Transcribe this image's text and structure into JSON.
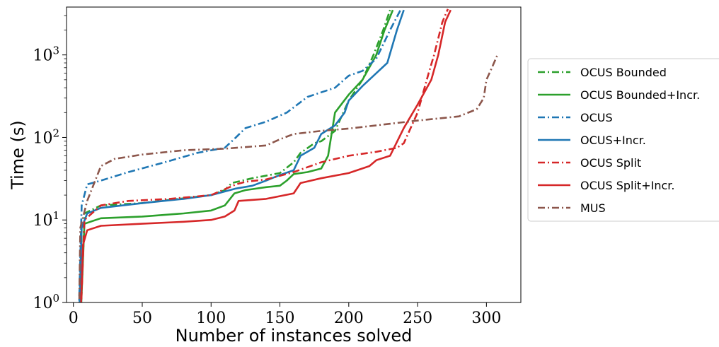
{
  "chart_data": {
    "type": "line",
    "title": "",
    "xlabel": "Number of instances solved",
    "ylabel": "Time (s)",
    "xlim": [
      -5,
      325
    ],
    "ylim": [
      1,
      3800
    ],
    "yscale": "log",
    "xticks": [
      0,
      50,
      100,
      150,
      200,
      250,
      300
    ],
    "xtick_labels": [
      "0",
      "50",
      "100",
      "150",
      "200",
      "250",
      "300"
    ],
    "yticks": [
      1,
      10,
      100,
      1000
    ],
    "ytick_labels": [
      {
        "base": "10",
        "exp": "0"
      },
      {
        "base": "10",
        "exp": "1"
      },
      {
        "base": "10",
        "exp": "2"
      },
      {
        "base": "10",
        "exp": "3"
      }
    ],
    "grid": false,
    "legend_position": "outside-right",
    "series": [
      {
        "name": "OCUS_Bounded",
        "label": "OCUS Bounded",
        "color": "#2ca02c",
        "dash": "dashdot",
        "points": [
          [
            5,
            0.5
          ],
          [
            8,
            12
          ],
          [
            20,
            15
          ],
          [
            50,
            16
          ],
          [
            100,
            20
          ],
          [
            110,
            23
          ],
          [
            115,
            28
          ],
          [
            130,
            32
          ],
          [
            150,
            37
          ],
          [
            160,
            50
          ],
          [
            165,
            65
          ],
          [
            175,
            85
          ],
          [
            180,
            90
          ],
          [
            190,
            120
          ],
          [
            200,
            280
          ],
          [
            210,
            500
          ],
          [
            218,
            1000
          ],
          [
            225,
            2000
          ],
          [
            230,
            3500
          ]
        ]
      },
      {
        "name": "OCUS_Bounded+Incr.",
        "label": "OCUS Bounded+Incr.",
        "color": "#2ca02c",
        "dash": "solid",
        "points": [
          [
            5,
            0.5
          ],
          [
            8,
            9
          ],
          [
            20,
            10.5
          ],
          [
            50,
            11
          ],
          [
            80,
            12
          ],
          [
            100,
            13
          ],
          [
            110,
            15
          ],
          [
            117,
            21
          ],
          [
            125,
            23
          ],
          [
            140,
            25
          ],
          [
            150,
            26
          ],
          [
            155,
            30
          ],
          [
            160,
            36
          ],
          [
            170,
            38
          ],
          [
            180,
            42
          ],
          [
            185,
            60
          ],
          [
            190,
            200
          ],
          [
            200,
            330
          ],
          [
            210,
            500
          ],
          [
            220,
            1000
          ],
          [
            226,
            2000
          ],
          [
            232,
            3500
          ]
        ]
      },
      {
        "name": "OCUS",
        "label": "OCUS",
        "color": "#1f77b4",
        "dash": "dashdot",
        "points": [
          [
            4,
            0.8
          ],
          [
            6,
            15
          ],
          [
            10,
            27
          ],
          [
            20,
            30
          ],
          [
            40,
            38
          ],
          [
            70,
            52
          ],
          [
            90,
            65
          ],
          [
            110,
            75
          ],
          [
            118,
            100
          ],
          [
            125,
            130
          ],
          [
            140,
            155
          ],
          [
            155,
            200
          ],
          [
            170,
            310
          ],
          [
            190,
            400
          ],
          [
            200,
            560
          ],
          [
            210,
            640
          ],
          [
            220,
            900
          ],
          [
            230,
            2000
          ],
          [
            238,
            3600
          ]
        ]
      },
      {
        "name": "OCUS+Incr.",
        "label": "OCUS+Incr.",
        "color": "#1f77b4",
        "dash": "solid",
        "points": [
          [
            4,
            0.5
          ],
          [
            6,
            8
          ],
          [
            10,
            12
          ],
          [
            20,
            14
          ],
          [
            50,
            16
          ],
          [
            80,
            18
          ],
          [
            100,
            20
          ],
          [
            118,
            24
          ],
          [
            130,
            26
          ],
          [
            140,
            30
          ],
          [
            150,
            35
          ],
          [
            160,
            40
          ],
          [
            165,
            60
          ],
          [
            175,
            75
          ],
          [
            180,
            110
          ],
          [
            190,
            140
          ],
          [
            197,
            200
          ],
          [
            200,
            280
          ],
          [
            210,
            420
          ],
          [
            220,
            600
          ],
          [
            228,
            800
          ],
          [
            235,
            2000
          ],
          [
            240,
            3500
          ]
        ]
      },
      {
        "name": "OCUS_Split",
        "label": "OCUS Split",
        "color": "#d62728",
        "dash": "dashdot",
        "points": [
          [
            5,
            0.5
          ],
          [
            8,
            10
          ],
          [
            20,
            15
          ],
          [
            40,
            17
          ],
          [
            70,
            18
          ],
          [
            100,
            20
          ],
          [
            118,
            27
          ],
          [
            125,
            29
          ],
          [
            140,
            31
          ],
          [
            160,
            38
          ],
          [
            180,
            50
          ],
          [
            200,
            60
          ],
          [
            220,
            67
          ],
          [
            235,
            75
          ],
          [
            240,
            85
          ],
          [
            250,
            200
          ],
          [
            258,
            600
          ],
          [
            262,
            1000
          ],
          [
            268,
            2500
          ],
          [
            272,
            3600
          ]
        ]
      },
      {
        "name": "OCUS_Split+Incr.",
        "label": "OCUS Split+Incr.",
        "color": "#d62728",
        "dash": "solid",
        "points": [
          [
            5,
            0.5
          ],
          [
            7,
            5
          ],
          [
            10,
            7.5
          ],
          [
            20,
            8.5
          ],
          [
            50,
            9
          ],
          [
            80,
            9.5
          ],
          [
            100,
            10
          ],
          [
            110,
            11
          ],
          [
            117,
            13
          ],
          [
            120,
            17
          ],
          [
            140,
            18
          ],
          [
            160,
            21
          ],
          [
            165,
            28
          ],
          [
            180,
            32
          ],
          [
            200,
            37
          ],
          [
            215,
            45
          ],
          [
            220,
            53
          ],
          [
            230,
            60
          ],
          [
            240,
            130
          ],
          [
            250,
            250
          ],
          [
            260,
            500
          ],
          [
            265,
            1000
          ],
          [
            270,
            2500
          ],
          [
            274,
            3500
          ]
        ]
      },
      {
        "name": "MUS",
        "label": "MUS",
        "color": "#8c564b",
        "dash": "dashdot",
        "points": [
          [
            4,
            0.5
          ],
          [
            5,
            8
          ],
          [
            10,
            17
          ],
          [
            20,
            45
          ],
          [
            30,
            55
          ],
          [
            50,
            62
          ],
          [
            80,
            70
          ],
          [
            110,
            73
          ],
          [
            140,
            80
          ],
          [
            150,
            95
          ],
          [
            160,
            110
          ],
          [
            180,
            120
          ],
          [
            200,
            128
          ],
          [
            220,
            140
          ],
          [
            250,
            160
          ],
          [
            280,
            180
          ],
          [
            293,
            220
          ],
          [
            298,
            300
          ],
          [
            300,
            500
          ],
          [
            304,
            700
          ],
          [
            308,
            1000
          ]
        ]
      }
    ]
  }
}
